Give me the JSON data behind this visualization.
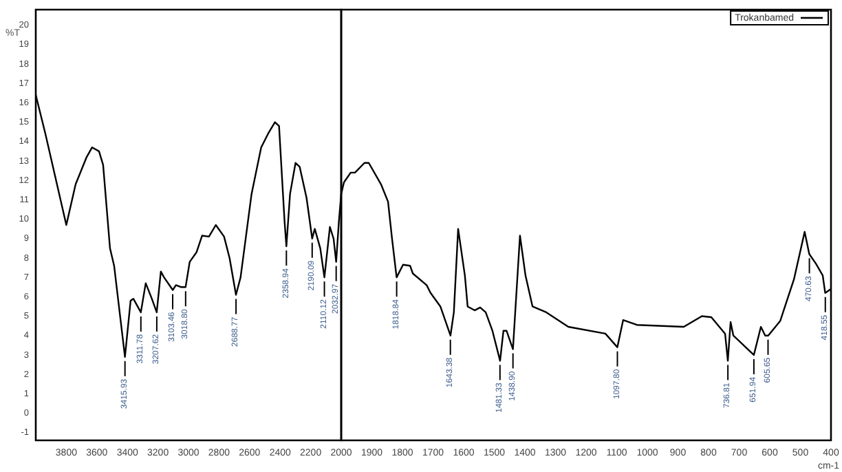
{
  "chart_data": [
    {
      "type": "line",
      "ylabel": "%T",
      "xlim": [
        4000,
        2000
      ],
      "xticks": [
        3800,
        3600,
        3400,
        3200,
        3000,
        2800,
        2600,
        2400,
        2200,
        2000
      ],
      "ylim": [
        -1.4,
        20.8
      ],
      "yticks": [
        -1,
        0,
        1,
        2,
        3,
        4,
        5,
        6,
        7,
        8,
        9,
        10,
        11,
        12,
        13,
        14,
        15,
        16,
        17,
        18,
        19,
        20
      ],
      "grid": false,
      "marker": "none",
      "line_style": "solid",
      "series": [
        {
          "color": "#000000",
          "x": [
            4000,
            3937,
            3800,
            3739,
            3667,
            3631,
            3586,
            3559,
            3514,
            3487,
            3416,
            3379,
            3361,
            3312,
            3280,
            3240,
            3208,
            3181,
            3160,
            3103,
            3082,
            3050,
            3019,
            2992,
            2947,
            2911,
            2866,
            2821,
            2767,
            2731,
            2689,
            2659,
            2587,
            2524,
            2479,
            2434,
            2407,
            2371,
            2359,
            2335,
            2299,
            2272,
            2227,
            2190,
            2173,
            2137,
            2110,
            2074,
            2050,
            2033,
            2015,
            2000
          ],
          "values": [
            16.4,
            14.4,
            9.7,
            11.8,
            13.2,
            13.7,
            13.5,
            12.8,
            8.5,
            7.6,
            2.9,
            5.8,
            5.9,
            5.2,
            6.7,
            5.9,
            5.2,
            7.3,
            7.0,
            6.35,
            6.6,
            6.5,
            6.5,
            7.8,
            8.3,
            9.15,
            9.1,
            9.7,
            9.1,
            8.0,
            6.1,
            7.0,
            11.3,
            13.7,
            14.4,
            15.0,
            14.8,
            9.9,
            8.6,
            11.3,
            12.9,
            12.7,
            11.1,
            9.0,
            9.5,
            8.5,
            7.0,
            9.6,
            9.0,
            7.8,
            9.9,
            11.3
          ]
        }
      ],
      "annotations": [
        {
          "text": "3415.93",
          "x": 3415.93,
          "y": 2.9
        },
        {
          "text": "3311.78",
          "x": 3311.78,
          "y": 5.2
        },
        {
          "text": "3207.62",
          "x": 3207.62,
          "y": 5.2
        },
        {
          "text": "3103.46",
          "x": 3103.46,
          "y": 6.35
        },
        {
          "text": "3018.80",
          "x": 3018.8,
          "y": 6.5
        },
        {
          "text": "2688.77",
          "x": 2688.77,
          "y": 6.1
        },
        {
          "text": "2358.94",
          "x": 2358.94,
          "y": 8.6
        },
        {
          "text": "2190.09",
          "x": 2190.09,
          "y": 9.0
        },
        {
          "text": "2110.12",
          "x": 2110.12,
          "y": 7.0
        },
        {
          "text": "2032.97",
          "x": 2032.97,
          "y": 7.8
        }
      ]
    },
    {
      "type": "line",
      "xlabel": "cm-1",
      "xlim": [
        2000,
        400
      ],
      "xticks": [
        1900,
        1800,
        1700,
        1600,
        1500,
        1400,
        1300,
        1200,
        1100,
        1000,
        900,
        800,
        700,
        600,
        500,
        400
      ],
      "ylim": [
        -1.4,
        20.8
      ],
      "tick_labels": "x",
      "grid": false,
      "marker": "none",
      "line_style": "solid",
      "legend": "top right",
      "series": [
        {
          "name": "Trokanbamed",
          "color": "#000000",
          "x": [
            2000,
            1991,
            1969,
            1955,
            1924,
            1910,
            1870,
            1847,
            1834,
            1819,
            1798,
            1775,
            1766,
            1721,
            1708,
            1676,
            1643,
            1632,
            1618,
            1596,
            1587,
            1564,
            1546,
            1528,
            1506,
            1481,
            1470,
            1460,
            1439,
            1416,
            1398,
            1375,
            1330,
            1258,
            1137,
            1098,
            1079,
            1034,
            881,
            822,
            791,
            746,
            737,
            728,
            719,
            652,
            629,
            615,
            605,
            566,
            521,
            486,
            471,
            449,
            427,
            419,
            400
          ],
          "values": [
            11.3,
            11.9,
            12.4,
            12.4,
            12.9,
            12.9,
            11.8,
            10.9,
            9.0,
            7.0,
            7.65,
            7.6,
            7.2,
            6.6,
            6.2,
            5.5,
            4.0,
            5.2,
            9.5,
            7.1,
            5.5,
            5.3,
            5.45,
            5.2,
            4.25,
            2.7,
            4.25,
            4.25,
            3.3,
            9.15,
            7.1,
            5.5,
            5.2,
            4.45,
            4.1,
            3.4,
            4.8,
            4.55,
            4.45,
            5.0,
            4.95,
            4.1,
            2.7,
            4.7,
            4.0,
            3.0,
            4.45,
            4.0,
            4.0,
            4.75,
            6.9,
            9.35,
            8.2,
            7.7,
            7.1,
            6.2,
            6.4
          ]
        }
      ],
      "annotations": [
        {
          "text": "1818.84",
          "x": 1818.84,
          "y": 7.0
        },
        {
          "text": "1643.38",
          "x": 1643.38,
          "y": 4.0
        },
        {
          "text": "1481.33",
          "x": 1481.33,
          "y": 2.7
        },
        {
          "text": "1438.90",
          "x": 1438.9,
          "y": 3.3
        },
        {
          "text": "1097.80",
          "x": 1097.8,
          "y": 3.4
        },
        {
          "text": "736.81",
          "x": 736.81,
          "y": 2.7
        },
        {
          "text": "651.94",
          "x": 651.94,
          "y": 3.0
        },
        {
          "text": "605.65",
          "x": 605.65,
          "y": 4.0
        },
        {
          "text": "470.63",
          "x": 470.63,
          "y": 8.2
        },
        {
          "text": "418.55",
          "x": 418.55,
          "y": 6.2
        }
      ]
    }
  ]
}
